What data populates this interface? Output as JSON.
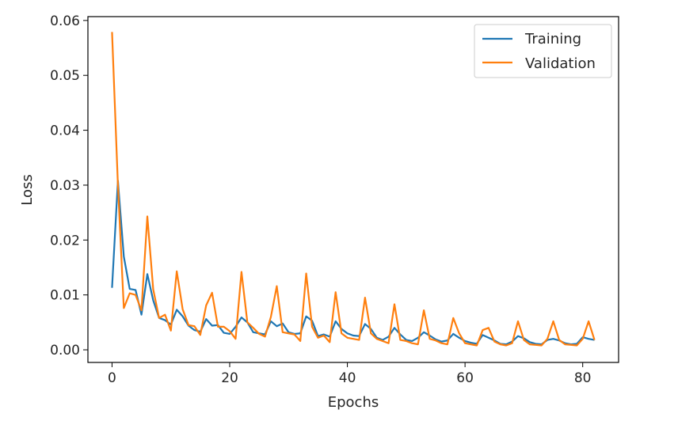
{
  "chart_data": {
    "type": "line",
    "title": "",
    "xlabel": "Epochs",
    "ylabel": "Loss",
    "xlim": [
      -4.1,
      86.1
    ],
    "ylim": [
      -0.0023,
      0.0607
    ],
    "xticks": [
      0,
      20,
      40,
      60,
      80
    ],
    "xtick_labels": [
      "0",
      "20",
      "40",
      "60",
      "80"
    ],
    "yticks": [
      0.0,
      0.01,
      0.02,
      0.03,
      0.04,
      0.05,
      0.06
    ],
    "ytick_labels": [
      "0.00",
      "0.01",
      "0.02",
      "0.03",
      "0.04",
      "0.05",
      "0.06"
    ],
    "grid": false,
    "legend": {
      "position": "upper right"
    },
    "colors": {
      "training": "#1f77b4",
      "validation": "#ff7f0e"
    },
    "x": [
      0,
      1,
      2,
      3,
      4,
      5,
      6,
      7,
      8,
      9,
      10,
      11,
      12,
      13,
      14,
      15,
      16,
      17,
      18,
      19,
      20,
      21,
      22,
      23,
      24,
      25,
      26,
      27,
      28,
      29,
      30,
      31,
      32,
      33,
      34,
      35,
      36,
      37,
      38,
      39,
      40,
      41,
      42,
      43,
      44,
      45,
      46,
      47,
      48,
      49,
      50,
      51,
      52,
      53,
      54,
      55,
      56,
      57,
      58,
      59,
      60,
      61,
      62,
      63,
      64,
      65,
      66,
      67,
      68,
      69,
      70,
      71,
      72,
      73,
      74,
      75,
      76,
      77,
      78,
      79,
      80,
      81,
      82
    ],
    "series": [
      {
        "name": "Training",
        "values": [
          0.0113,
          0.0308,
          0.017,
          0.0111,
          0.0109,
          0.0064,
          0.0138,
          0.009,
          0.0058,
          0.0054,
          0.0046,
          0.0073,
          0.0061,
          0.0044,
          0.0036,
          0.0033,
          0.0056,
          0.0044,
          0.0045,
          0.0031,
          0.0029,
          0.0042,
          0.0059,
          0.005,
          0.0032,
          0.003,
          0.0028,
          0.0052,
          0.0043,
          0.0048,
          0.0032,
          0.0029,
          0.003,
          0.0061,
          0.0053,
          0.0025,
          0.0028,
          0.0024,
          0.0052,
          0.0038,
          0.003,
          0.0026,
          0.0025,
          0.0047,
          0.0038,
          0.0022,
          0.0018,
          0.0024,
          0.004,
          0.0028,
          0.0018,
          0.0016,
          0.0022,
          0.0032,
          0.0026,
          0.0019,
          0.0015,
          0.0017,
          0.0029,
          0.0022,
          0.0016,
          0.0013,
          0.0011,
          0.0027,
          0.0022,
          0.0017,
          0.0011,
          0.001,
          0.0015,
          0.0025,
          0.0021,
          0.0014,
          0.0011,
          0.001,
          0.0018,
          0.002,
          0.0017,
          0.0012,
          0.001,
          0.0011,
          0.0023,
          0.002,
          0.0018
        ]
      },
      {
        "name": "Validation",
        "values": [
          0.0579,
          0.03,
          0.0076,
          0.0103,
          0.01,
          0.0072,
          0.0243,
          0.011,
          0.0058,
          0.0064,
          0.0035,
          0.0143,
          0.0074,
          0.0045,
          0.0043,
          0.0027,
          0.0081,
          0.0104,
          0.0042,
          0.0042,
          0.0034,
          0.002,
          0.0142,
          0.005,
          0.004,
          0.0029,
          0.0024,
          0.006,
          0.0116,
          0.0032,
          0.003,
          0.0028,
          0.0016,
          0.0139,
          0.0042,
          0.0022,
          0.0026,
          0.0014,
          0.0105,
          0.003,
          0.0022,
          0.002,
          0.0018,
          0.0095,
          0.003,
          0.002,
          0.0016,
          0.0012,
          0.0083,
          0.0018,
          0.0016,
          0.0012,
          0.001,
          0.0072,
          0.002,
          0.0017,
          0.0012,
          0.001,
          0.0058,
          0.003,
          0.0012,
          0.001,
          0.0008,
          0.0036,
          0.004,
          0.0015,
          0.001,
          0.0008,
          0.0012,
          0.0052,
          0.0018,
          0.001,
          0.0009,
          0.0008,
          0.002,
          0.0052,
          0.0018,
          0.001,
          0.0009,
          0.0008,
          0.002,
          0.0052,
          0.0018
        ]
      }
    ]
  }
}
